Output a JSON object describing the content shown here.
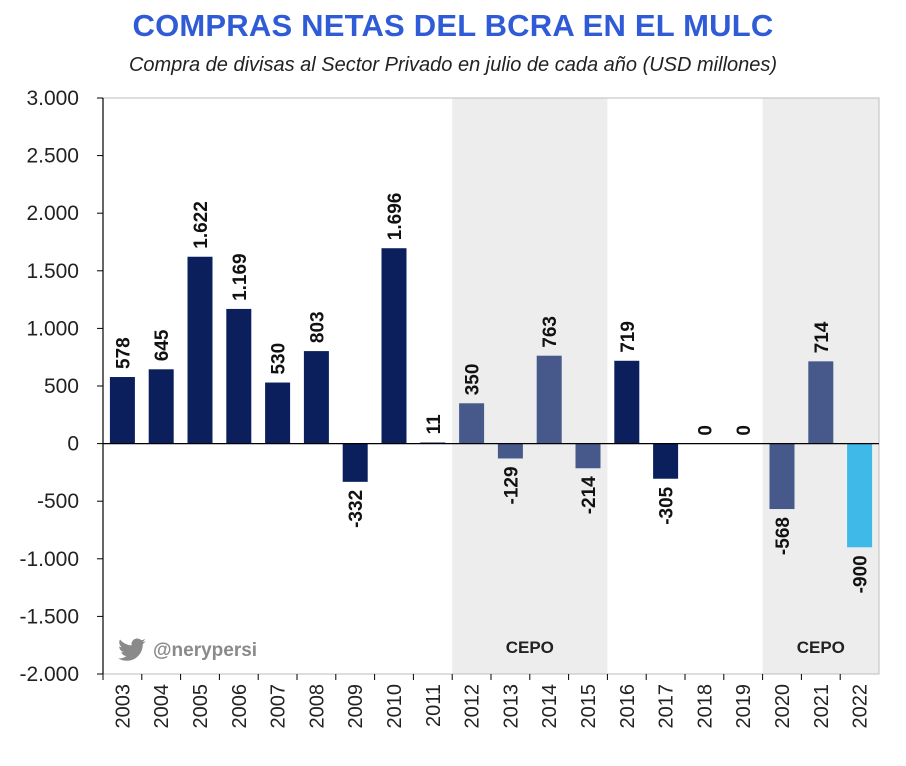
{
  "header": {
    "title": "COMPRAS NETAS DEL BCRA EN EL MULC",
    "subtitle": "Compra de divisas al Sector Privado en julio de cada año (USD millones)"
  },
  "watermark": {
    "handle": "@nerypersi",
    "icon": "twitter-bird-icon"
  },
  "chart_data": {
    "type": "bar",
    "title": "COMPRAS NETAS DEL BCRA EN EL MULC",
    "subtitle": "Compra de divisas al Sector Privado en julio de cada año (USD millones)",
    "xlabel": "",
    "ylabel": "",
    "ylim": [
      -2000,
      3000
    ],
    "yticks": [
      3000,
      2500,
      2000,
      1500,
      1000,
      500,
      0,
      -500,
      -1000,
      -1500,
      -2000
    ],
    "ytick_labels": [
      "3.000",
      "2.500",
      "2.000",
      "1.500",
      "1.000",
      "500",
      "0",
      "-500",
      "-1.000",
      "-1.500",
      "-2.000"
    ],
    "categories": [
      "2003",
      "2004",
      "2005",
      "2006",
      "2007",
      "2008",
      "2009",
      "2010",
      "2011",
      "2012",
      "2013",
      "2014",
      "2015",
      "2016",
      "2017",
      "2018",
      "2019",
      "2020",
      "2021",
      "2022"
    ],
    "values": [
      578,
      645,
      1622,
      1169,
      530,
      803,
      -332,
      1696,
      11,
      350,
      -129,
      763,
      -214,
      719,
      -305,
      0,
      0,
      -568,
      714,
      -900
    ],
    "value_labels": [
      "578",
      "645",
      "1.622",
      "1.169",
      "530",
      "803",
      "-332",
      "1.696",
      "11",
      "350",
      "-129",
      "763",
      "-214",
      "719",
      "-305",
      "0",
      "0",
      "-568",
      "714",
      "-900"
    ],
    "bar_colors": [
      "#0B1F5C",
      "#0B1F5C",
      "#0B1F5C",
      "#0B1F5C",
      "#0B1F5C",
      "#0B1F5C",
      "#0B1F5C",
      "#0B1F5C",
      "#46598A",
      "#46598A",
      "#46598A",
      "#46598A",
      "#46598A",
      "#0B1F5C",
      "#0B1F5C",
      "#0B1F5C",
      "#0B1F5C",
      "#46598A",
      "#46598A",
      "#3FB9E8"
    ],
    "shaded_periods": [
      {
        "label": "CEPO",
        "from": "2012",
        "to": "2015"
      },
      {
        "label": "CEPO",
        "from": "2020",
        "to": "2022"
      }
    ],
    "colors": {
      "shade": "#EDEDED",
      "axis": "#000000",
      "title": "#2F5CD6"
    },
    "grid": false
  }
}
